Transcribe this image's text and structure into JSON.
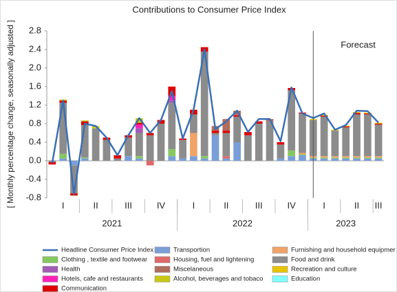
{
  "chart_data": {
    "type": "bar",
    "stacked": true,
    "title": "Contributions to Consumer Price Index",
    "y_label": "[ Monthly percentage change, seasonally adjusted ]",
    "categories": [
      null,
      null,
      null,
      null,
      null,
      null,
      null,
      null,
      null,
      null,
      null,
      null,
      null,
      null,
      null,
      null,
      null,
      null,
      null,
      null,
      null,
      null,
      null,
      null,
      null,
      null,
      null,
      null,
      null,
      null,
      null
    ],
    "quarters": [
      "I",
      "II",
      "III",
      "IV",
      "I",
      "II",
      "III",
      "IV",
      "I",
      "II",
      "III"
    ],
    "years": [
      "2021",
      "2022",
      "2023"
    ],
    "annotation": {
      "text": "Forecast",
      "index": 24
    },
    "ylim": [
      -0.8,
      2.8
    ],
    "yticks": [
      2.8,
      2.4,
      {
        "value": 2,
        "label": "2.0"
      },
      1.6,
      1.2,
      0.8,
      0.4,
      {
        "value": 0,
        "label": "0.0"
      },
      -0.4,
      -0.8
    ],
    "series": [
      {
        "name": "Headline Consumer Price Index",
        "type": "line",
        "color": "#3a6fb5",
        "values": [
          -0.05,
          1.3,
          -0.72,
          0.8,
          0.75,
          0.5,
          0.12,
          0.55,
          0.92,
          0.6,
          0.88,
          1.5,
          0.48,
          1.1,
          2.4,
          0.68,
          0.85,
          1.08,
          0.62,
          0.9,
          0.9,
          0.42,
          1.58,
          1.02,
          0.92,
          1.02,
          0.67,
          0.77,
          1.08,
          1.07,
          0.82
        ]
      },
      {
        "name": "Clothing , textile and footwear",
        "color": "#86c860",
        "values": [
          0,
          0.1,
          0,
          0.02,
          0,
          0,
          0,
          0,
          0.05,
          0,
          0,
          0.15,
          0,
          0,
          0.05,
          0,
          0,
          0,
          0,
          0,
          0,
          0,
          0.12,
          0.02,
          0.02,
          0.02,
          0.02,
          0.02,
          0.02,
          0.02,
          0.02
        ]
      },
      {
        "name": "Health",
        "color": "#a25cb8",
        "values": [
          0,
          0,
          0,
          0,
          0,
          0,
          0,
          0,
          0.1,
          0,
          0,
          0.05,
          0,
          0,
          0,
          0,
          0,
          0,
          0,
          0,
          0,
          0,
          0,
          0,
          0,
          0,
          0,
          0,
          0,
          0,
          0
        ]
      },
      {
        "name": "Hotels, cafe and restaurants",
        "color": "#ff22b8",
        "values": [
          0,
          0,
          0,
          0,
          0,
          0,
          0,
          0,
          0.08,
          0,
          0,
          0.1,
          0,
          0,
          0,
          0,
          0,
          0,
          0,
          0,
          0,
          0,
          0,
          0,
          0,
          0,
          0,
          0,
          0,
          0,
          0
        ]
      },
      {
        "name": "Communication",
        "color": "#e00000",
        "values": [
          -0.05,
          0.05,
          -0.05,
          0.08,
          0,
          0.05,
          0.07,
          0.05,
          0.04,
          0.05,
          0.08,
          0.2,
          0.03,
          0.1,
          0.1,
          0.05,
          0.05,
          0.03,
          0.07,
          0.05,
          0,
          0.05,
          0.05,
          0.02,
          0,
          0.02,
          0,
          0.02,
          0.03,
          0.02,
          0.02
        ]
      },
      {
        "name": "Transportion",
        "color": "#7a9fd8",
        "values": [
          0,
          0.05,
          -0.1,
          0.05,
          0,
          0,
          0,
          0.1,
          0.05,
          0,
          0,
          0.1,
          0.05,
          0.1,
          0.05,
          0.55,
          0.05,
          0.4,
          0,
          0,
          0,
          0.05,
          0.1,
          0.12,
          0.05,
          0.05,
          0.05,
          0.05,
          0.05,
          0.05,
          0.05
        ]
      },
      {
        "name": "Housing, fuel and lightening",
        "color": "#e06868",
        "values": [
          0,
          0,
          0,
          0,
          0,
          0,
          0,
          0,
          0,
          -0.1,
          0,
          0,
          0,
          0,
          0,
          0,
          0.05,
          0,
          0,
          0,
          0,
          0,
          0,
          0,
          0,
          0,
          0,
          0,
          0,
          0,
          0
        ]
      },
      {
        "name": "Miscelaneous",
        "color": "#b06c5c",
        "values": [
          0,
          0,
          0,
          0,
          0,
          0,
          0,
          0,
          0,
          0,
          0,
          0,
          0,
          0,
          0,
          0.1,
          0.25,
          0.1,
          0,
          0,
          0.05,
          0,
          0,
          0,
          0,
          0,
          0,
          0,
          0,
          0,
          0
        ]
      },
      {
        "name": "Alcohol, beverages and tobaco",
        "color": "#c8c814",
        "values": [
          0,
          0,
          0,
          0.02,
          0.05,
          0,
          0,
          0,
          0.1,
          0,
          0,
          0,
          0,
          0,
          0,
          0,
          0,
          0,
          0,
          0,
          0,
          0,
          0,
          0,
          0,
          0,
          0,
          0,
          0,
          0,
          0
        ]
      },
      {
        "name": "Furnishing and household equipmer",
        "color": "#f0a468",
        "values": [
          0,
          0,
          0,
          0,
          0,
          0,
          0,
          0,
          0,
          0,
          0,
          0,
          0,
          0.5,
          0,
          0,
          0,
          0,
          0,
          0,
          0,
          0,
          0,
          0.03,
          0.03,
          0.03,
          0.03,
          0.03,
          0.03,
          0.03,
          0.03
        ]
      },
      {
        "name": "Food and drink",
        "color": "#8c8c8c",
        "values": [
          -0.03,
          1.1,
          -0.6,
          0.7,
          0.7,
          0.45,
          0.05,
          0.4,
          0.5,
          0.55,
          0.8,
          1.0,
          0.4,
          0.4,
          2.25,
          0.05,
          0.5,
          0.55,
          0.55,
          0.8,
          0.85,
          0.3,
          1.3,
          0.85,
          0.78,
          0.85,
          0.55,
          0.62,
          0.9,
          0.9,
          0.68
        ]
      },
      {
        "name": "Recreation and culture",
        "color": "#e8c400",
        "values": [
          0,
          0.02,
          0,
          0,
          0,
          0,
          0,
          0,
          0,
          0,
          0,
          0,
          0,
          0,
          0,
          0,
          0,
          0,
          0,
          0,
          0,
          0,
          0,
          0,
          0.02,
          0.02,
          0.02,
          0.02,
          0.02,
          0.02,
          0.02
        ]
      },
      {
        "name": "Education",
        "color": "#80ffff",
        "values": [
          0,
          0,
          0,
          0,
          0,
          0,
          0,
          0,
          0,
          0,
          0,
          0,
          0,
          0,
          0,
          0,
          0,
          0,
          0,
          0,
          0,
          0,
          0,
          0,
          0,
          0,
          0,
          0,
          0,
          0,
          0
        ]
      }
    ]
  }
}
